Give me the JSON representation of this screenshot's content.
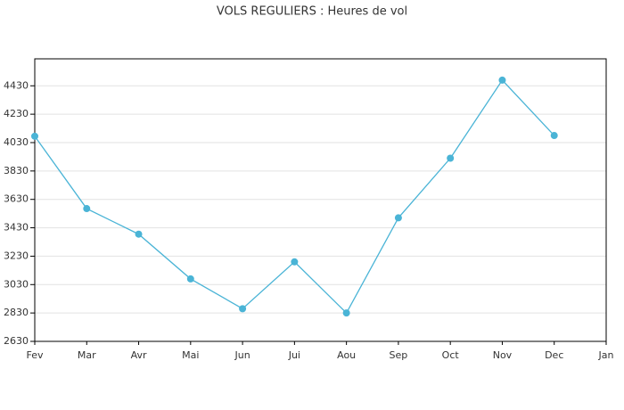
{
  "chart_data": {
    "type": "line",
    "title": "VOLS REGULIERS : Heures de vol",
    "categories": [
      "Fev",
      "Mar",
      "Avr",
      "Mai",
      "Jun",
      "Jui",
      "Aou",
      "Sep",
      "Oct",
      "Nov",
      "Dec",
      "Jan"
    ],
    "series": [
      {
        "name": "Heures de vol",
        "color": "#4ab4d6",
        "values": [
          4075,
          3565,
          3385,
          3070,
          2860,
          3190,
          2830,
          3500,
          3920,
          4470,
          4080,
          null
        ]
      }
    ],
    "ylim": [
      2630,
      4620
    ],
    "yticks": [
      2630,
      2830,
      3030,
      3230,
      3430,
      3630,
      3830,
      4030,
      4230,
      4430
    ],
    "grid": true
  }
}
